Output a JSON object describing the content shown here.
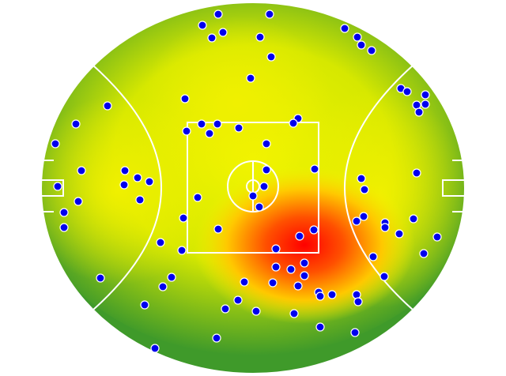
{
  "chart_data": {
    "type": "scatter",
    "color": "#0000ee",
    "xlim": [
      52,
      588
    ],
    "ylim": [
      473,
      3
    ],
    "x": [
      276,
      341,
      256,
      282,
      268,
      329,
      436,
      452,
      457,
      470,
      343,
      317,
      234,
      136,
      96,
      70,
      507,
      515,
      538,
      527,
      538,
      530,
      377,
      371,
      255,
      275,
      302,
      236,
      265,
      337,
      103,
      158,
      174,
      189,
      157,
      73,
      99,
      177,
      81,
      81,
      398,
      337,
      334,
      320,
      328,
      250,
      457,
      461,
      527,
      232,
      276,
      460,
      451,
      487,
      487,
      523,
      505,
      553,
      397,
      379,
      349,
      230,
      203,
      472,
      536,
      127,
      217,
      206,
      349,
      368,
      385,
      385,
      309,
      345,
      377,
      486,
      403,
      405,
      420,
      451,
      453,
      301,
      183,
      285,
      324,
      372,
      405,
      449,
      274,
      196
    ],
    "values": [
      18,
      18,
      32,
      41,
      48,
      47,
      36,
      47,
      57,
      64,
      72,
      99,
      125,
      134,
      157,
      182,
      112,
      116,
      120,
      133,
      132,
      142,
      150,
      156,
      157,
      157,
      162,
      166,
      169,
      182,
      216,
      216,
      225,
      230,
      234,
      236,
      255,
      253,
      269,
      288,
      214,
      215,
      236,
      248,
      262,
      250,
      226,
      240,
      219,
      276,
      290,
      274,
      280,
      282,
      288,
      277,
      296,
      300,
      291,
      299,
      315,
      317,
      307,
      325,
      321,
      352,
      351,
      363,
      338,
      341,
      333,
      349,
      357,
      358,
      362,
      350,
      370,
      375,
      373,
      373,
      382,
      380,
      386,
      391,
      394,
      397,
      414,
      421,
      428,
      441
    ]
  }
}
